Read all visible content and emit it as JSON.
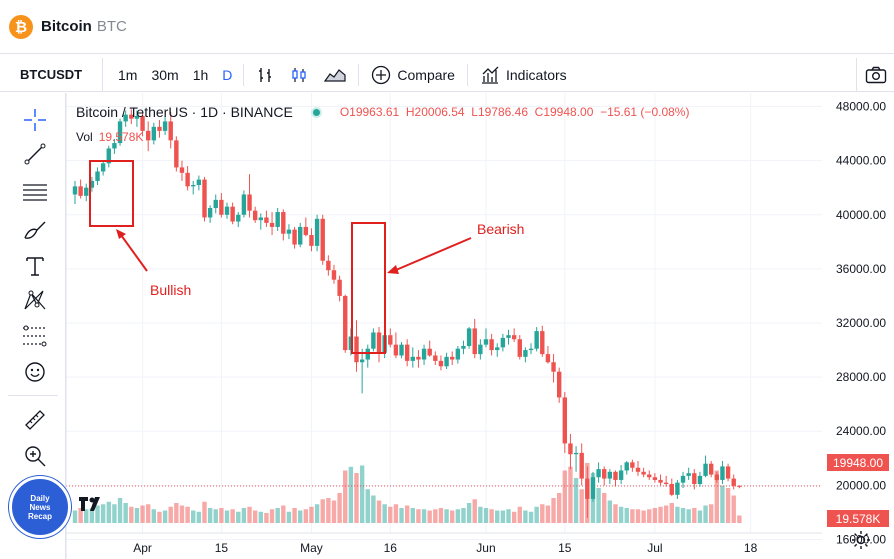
{
  "app": {
    "title": "Bitcoin",
    "symbol": "BTC",
    "logo": "₿"
  },
  "toolbar": {
    "symbol": "BTCUSDT",
    "timeframes": [
      "1m",
      "30m",
      "1h",
      "D"
    ],
    "active_timeframe": "D",
    "compare_label": "Compare",
    "indicators_label": "Indicators",
    "icons": [
      "bar-style-icon",
      "candle-style-icon",
      "area-style-icon",
      "compare-plus-icon",
      "indicators-icon",
      "camera-icon"
    ]
  },
  "left_tools": [
    "crosshair-icon",
    "trendline-icon",
    "horizontal-lines-icon",
    "brush-icon",
    "text-icon",
    "pattern-icon",
    "fib-icon",
    "emoji-icon",
    "ruler-icon",
    "zoom-icon"
  ],
  "legend": {
    "name": "Bitcoin / TetherUS · 1D · BINANCE",
    "o": "O19963.61",
    "h": "H20006.54",
    "l": "L19786.46",
    "c": "C19948.00",
    "chg": "−15.61 (−0.08%)",
    "vol_label": "Vol",
    "vol_value": "19.578K"
  },
  "annotations": {
    "bullish": "Bullish",
    "bearish": "Bearish"
  },
  "badge": {
    "line1": "Daily",
    "line2": "News",
    "line3": "Recap"
  },
  "price_tags": {
    "last": "19948.00",
    "vol": "19.578K"
  },
  "colors": {
    "up": "#26a69a",
    "down": "#ef5350",
    "annotation": "#e0201f",
    "accent": "#2962ff"
  },
  "chart_data": {
    "type": "candlestick",
    "symbol": "BTCUSDT",
    "exchange": "BINANCE",
    "interval": "1D",
    "ylim": [
      15000,
      49000
    ],
    "y_ticks": [
      16000,
      20000,
      24000,
      28000,
      32000,
      36000,
      40000,
      44000,
      48000
    ],
    "y_tick_labels": [
      "16000.00",
      "20000.00",
      "24000.00",
      "28000.00",
      "32000.00",
      "36000.00",
      "40000.00",
      "44000.00",
      "48000.00"
    ],
    "x_ticks": [
      {
        "day": 12,
        "label": "Apr"
      },
      {
        "day": 26,
        "label": "15"
      },
      {
        "day": 42,
        "label": "May"
      },
      {
        "day": 56,
        "label": "16"
      },
      {
        "day": 73,
        "label": "Jun"
      },
      {
        "day": 87,
        "label": "15"
      },
      {
        "day": 103,
        "label": "Jul"
      },
      {
        "day": 120,
        "label": "18"
      }
    ],
    "last_price": 19948,
    "candles": [
      [
        41500,
        42500,
        40800,
        42100,
        10
      ],
      [
        42100,
        42600,
        41200,
        41400,
        12
      ],
      [
        41400,
        42300,
        41000,
        42000,
        11
      ],
      [
        42000,
        42800,
        41700,
        42500,
        12
      ],
      [
        42500,
        43500,
        42200,
        43200,
        14
      ],
      [
        43200,
        44000,
        42900,
        43800,
        15
      ],
      [
        43800,
        45100,
        43500,
        44900,
        17
      ],
      [
        44900,
        45600,
        44500,
        45300,
        15
      ],
      [
        45300,
        47100,
        45100,
        46900,
        20
      ],
      [
        46900,
        47700,
        46500,
        47400,
        16
      ],
      [
        47400,
        47800,
        46700,
        47100,
        13
      ],
      [
        47100,
        47700,
        46500,
        47300,
        12
      ],
      [
        47300,
        47600,
        45800,
        46200,
        14
      ],
      [
        46200,
        46900,
        44700,
        45500,
        15
      ],
      [
        45500,
        46800,
        45200,
        46500,
        11
      ],
      [
        46500,
        47000,
        45700,
        46200,
        9
      ],
      [
        46200,
        47300,
        45900,
        46900,
        10
      ],
      [
        46900,
        47600,
        44900,
        45500,
        13
      ],
      [
        45500,
        45800,
        43200,
        43500,
        16
      ],
      [
        43500,
        44000,
        42500,
        43100,
        14
      ],
      [
        43100,
        43600,
        41800,
        42100,
        13
      ],
      [
        42100,
        42500,
        41500,
        42200,
        10
      ],
      [
        42200,
        42900,
        41800,
        42600,
        9
      ],
      [
        42600,
        42800,
        39500,
        39800,
        17
      ],
      [
        39800,
        40700,
        39400,
        40500,
        12
      ],
      [
        40500,
        41500,
        40100,
        41100,
        11
      ],
      [
        41100,
        41600,
        39800,
        40000,
        12
      ],
      [
        40000,
        40900,
        39700,
        40600,
        10
      ],
      [
        40600,
        40900,
        39300,
        39500,
        11
      ],
      [
        39500,
        40200,
        39100,
        40000,
        9
      ],
      [
        40000,
        41800,
        39800,
        41500,
        12
      ],
      [
        41500,
        43000,
        39800,
        40300,
        13
      ],
      [
        40300,
        40600,
        39400,
        39600,
        10
      ],
      [
        39600,
        40100,
        38900,
        39800,
        9
      ],
      [
        39800,
        40300,
        39100,
        39400,
        8
      ],
      [
        39400,
        40200,
        38500,
        39100,
        11
      ],
      [
        39100,
        40500,
        38800,
        40200,
        12
      ],
      [
        40200,
        40400,
        38100,
        38600,
        14
      ],
      [
        38600,
        39300,
        38200,
        38900,
        9
      ],
      [
        38900,
        39100,
        37500,
        37800,
        12
      ],
      [
        37800,
        39400,
        37600,
        39100,
        10
      ],
      [
        39100,
        39800,
        38400,
        38500,
        11
      ],
      [
        38500,
        39000,
        37300,
        37700,
        13
      ],
      [
        37700,
        40000,
        37300,
        39700,
        15
      ],
      [
        39700,
        40000,
        36300,
        36600,
        19
      ],
      [
        36600,
        37000,
        35500,
        35900,
        20
      ],
      [
        35900,
        36300,
        34900,
        35200,
        18
      ],
      [
        35200,
        35500,
        33600,
        34000,
        24
      ],
      [
        34000,
        34100,
        29800,
        30000,
        42
      ],
      [
        30000,
        31600,
        29600,
        31000,
        45
      ],
      [
        31000,
        32200,
        28400,
        29100,
        40
      ],
      [
        29100,
        30100,
        26800,
        29300,
        46
      ],
      [
        29300,
        30400,
        28700,
        30100,
        27
      ],
      [
        30100,
        31600,
        29900,
        31300,
        22
      ],
      [
        31300,
        31700,
        29100,
        29800,
        18
      ],
      [
        29800,
        31400,
        29400,
        31100,
        15
      ],
      [
        31100,
        31600,
        30200,
        30400,
        13
      ],
      [
        30400,
        31300,
        29400,
        29600,
        15
      ],
      [
        29600,
        30600,
        29400,
        30400,
        12
      ],
      [
        30400,
        30800,
        28800,
        29200,
        14
      ],
      [
        29200,
        30200,
        28700,
        29500,
        12
      ],
      [
        29500,
        30000,
        28700,
        29300,
        11
      ],
      [
        29300,
        30400,
        28900,
        30100,
        11
      ],
      [
        30100,
        30700,
        29500,
        29600,
        10
      ],
      [
        29600,
        29900,
        28900,
        29200,
        11
      ],
      [
        29200,
        29600,
        28500,
        28800,
        12
      ],
      [
        28800,
        29800,
        28600,
        29500,
        11
      ],
      [
        29500,
        29900,
        28900,
        29300,
        10
      ],
      [
        29300,
        30300,
        29000,
        30100,
        11
      ],
      [
        30100,
        30700,
        29700,
        30300,
        12
      ],
      [
        30300,
        31700,
        30100,
        31600,
        16
      ],
      [
        31600,
        32300,
        29400,
        29700,
        19
      ],
      [
        29700,
        30800,
        29300,
        30400,
        13
      ],
      [
        30400,
        31600,
        30200,
        30800,
        12
      ],
      [
        30800,
        31200,
        29600,
        30000,
        11
      ],
      [
        30000,
        30500,
        29500,
        30200,
        10
      ],
      [
        30200,
        31200,
        29900,
        30900,
        10
      ],
      [
        30900,
        31500,
        30400,
        31100,
        11
      ],
      [
        31100,
        31600,
        30600,
        30800,
        9
      ],
      [
        30800,
        31100,
        29300,
        29500,
        13
      ],
      [
        29500,
        30200,
        29100,
        30000,
        10
      ],
      [
        30000,
        30500,
        29700,
        30100,
        9
      ],
      [
        30100,
        31700,
        29900,
        31400,
        13
      ],
      [
        31400,
        31800,
        29500,
        29700,
        15
      ],
      [
        29700,
        30300,
        29000,
        29100,
        14
      ],
      [
        29100,
        29700,
        27600,
        28400,
        20
      ],
      [
        28400,
        28700,
        26100,
        26500,
        24
      ],
      [
        26500,
        26900,
        22400,
        23100,
        42
      ],
      [
        23100,
        23800,
        21200,
        22300,
        45
      ],
      [
        22300,
        22900,
        21000,
        22400,
        36
      ],
      [
        22400,
        23100,
        20000,
        20500,
        27
      ],
      [
        20500,
        21400,
        17600,
        19000,
        48
      ],
      [
        19000,
        21000,
        18800,
        20600,
        40
      ],
      [
        20600,
        21700,
        20200,
        21200,
        28
      ],
      [
        21200,
        21400,
        20000,
        20500,
        24
      ],
      [
        20500,
        21200,
        20100,
        21000,
        18
      ],
      [
        21000,
        21100,
        19900,
        20400,
        15
      ],
      [
        20400,
        21500,
        20100,
        21100,
        13
      ],
      [
        21100,
        21800,
        20800,
        21700,
        12
      ],
      [
        21700,
        21900,
        21000,
        21300,
        11
      ],
      [
        21300,
        21800,
        20700,
        21000,
        11
      ],
      [
        21000,
        21300,
        20600,
        20800,
        10
      ],
      [
        20800,
        21100,
        20400,
        20600,
        11
      ],
      [
        20600,
        20900,
        20200,
        20400,
        12
      ],
      [
        20400,
        20800,
        20000,
        20200,
        13
      ],
      [
        20200,
        20700,
        19900,
        20100,
        14
      ],
      [
        20100,
        20500,
        19200,
        19300,
        16
      ],
      [
        19300,
        20400,
        19000,
        20200,
        13
      ],
      [
        20200,
        21000,
        19800,
        20700,
        12
      ],
      [
        20700,
        21300,
        20400,
        20900,
        11
      ],
      [
        20900,
        21200,
        19700,
        20100,
        12
      ],
      [
        20100,
        21000,
        19900,
        20700,
        10
      ],
      [
        20700,
        22200,
        20600,
        21600,
        14
      ],
      [
        21600,
        21800,
        20600,
        20800,
        15
      ],
      [
        20800,
        21000,
        20200,
        20400,
        42
      ],
      [
        20400,
        21800,
        20100,
        21400,
        30
      ],
      [
        21400,
        21600,
        20300,
        20500,
        28
      ],
      [
        20500,
        20800,
        19700,
        19964,
        22
      ],
      [
        19964,
        20007,
        19786,
        19948,
        6
      ]
    ]
  }
}
